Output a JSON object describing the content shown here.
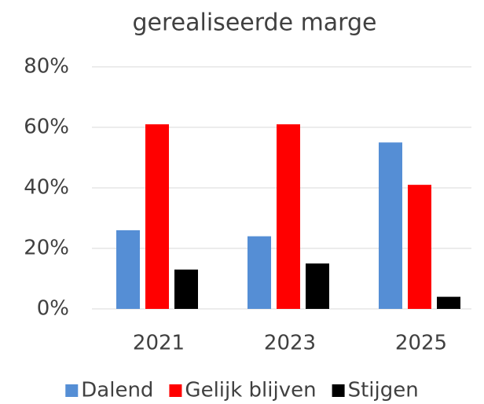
{
  "chart_data": {
    "type": "bar",
    "title": "gerealiseerde marge",
    "categories": [
      "2021",
      "2023",
      "2025"
    ],
    "series": [
      {
        "name": "Dalend",
        "color": "#558ed5",
        "values": [
          26,
          24,
          55
        ]
      },
      {
        "name": "Gelijk blijven",
        "color": "#ff0000",
        "values": [
          61,
          61,
          41
        ]
      },
      {
        "name": "Stijgen",
        "color": "#000000",
        "values": [
          13,
          15,
          4
        ]
      }
    ],
    "ylim": [
      0,
      80
    ],
    "yticks": [
      {
        "value": 0,
        "label": "0%"
      },
      {
        "value": 20,
        "label": "20%"
      },
      {
        "value": 40,
        "label": "40%"
      },
      {
        "value": 60,
        "label": "60%"
      },
      {
        "value": 80,
        "label": "80%"
      }
    ],
    "grid": true,
    "legend": "bottom"
  }
}
